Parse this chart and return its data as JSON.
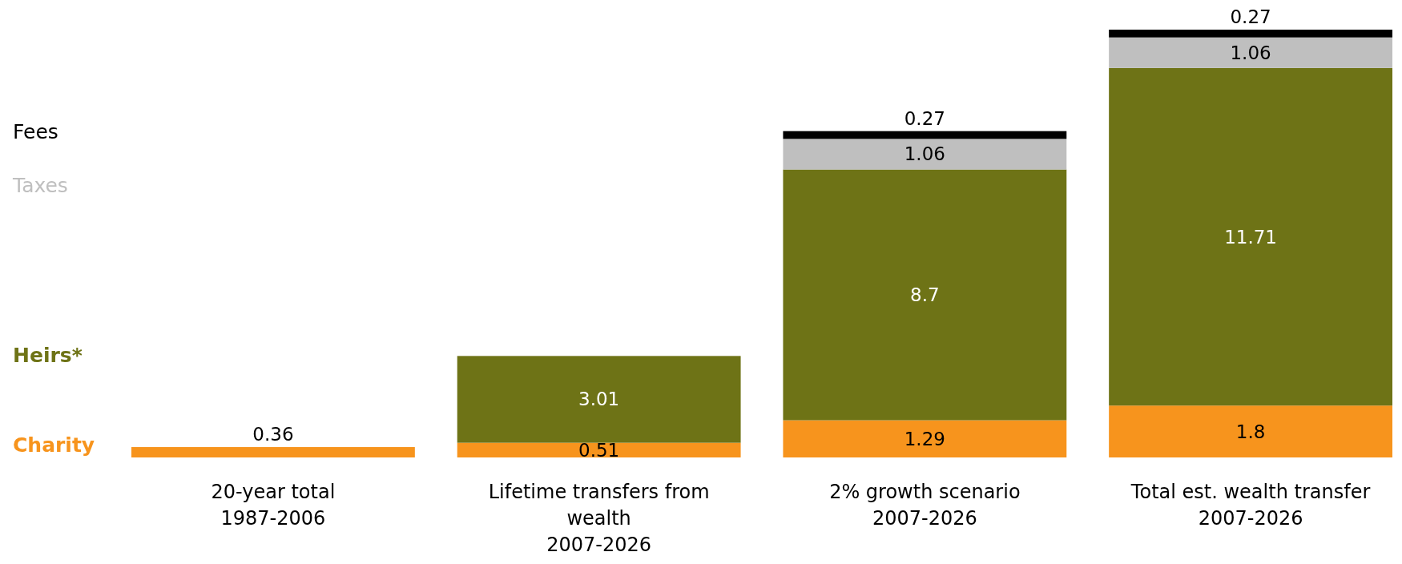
{
  "chart_data": {
    "type": "bar",
    "stacked": true,
    "data_labels": true,
    "legend": "left",
    "grid": false,
    "categories": [
      "20-year total\n1987-2006",
      "Lifetime transfers from\nwealth\n2007-2026",
      "2% growth scenario\n2007-2026",
      "Total est. wealth transfer\n2007-2026"
    ],
    "series": [
      {
        "name": "Charity",
        "color": "#f7941d",
        "values": [
          0.36,
          0.51,
          1.29,
          1.8
        ]
      },
      {
        "name": "Heirs*",
        "color": "#6e7316",
        "values": [
          null,
          3.01,
          8.7,
          11.71
        ]
      },
      {
        "name": "Taxes",
        "color": "#bfbfbf",
        "values": [
          null,
          null,
          1.06,
          1.06
        ]
      },
      {
        "name": "Fees",
        "color": "#000000",
        "values": [
          null,
          null,
          0.27,
          0.27
        ]
      }
    ]
  }
}
